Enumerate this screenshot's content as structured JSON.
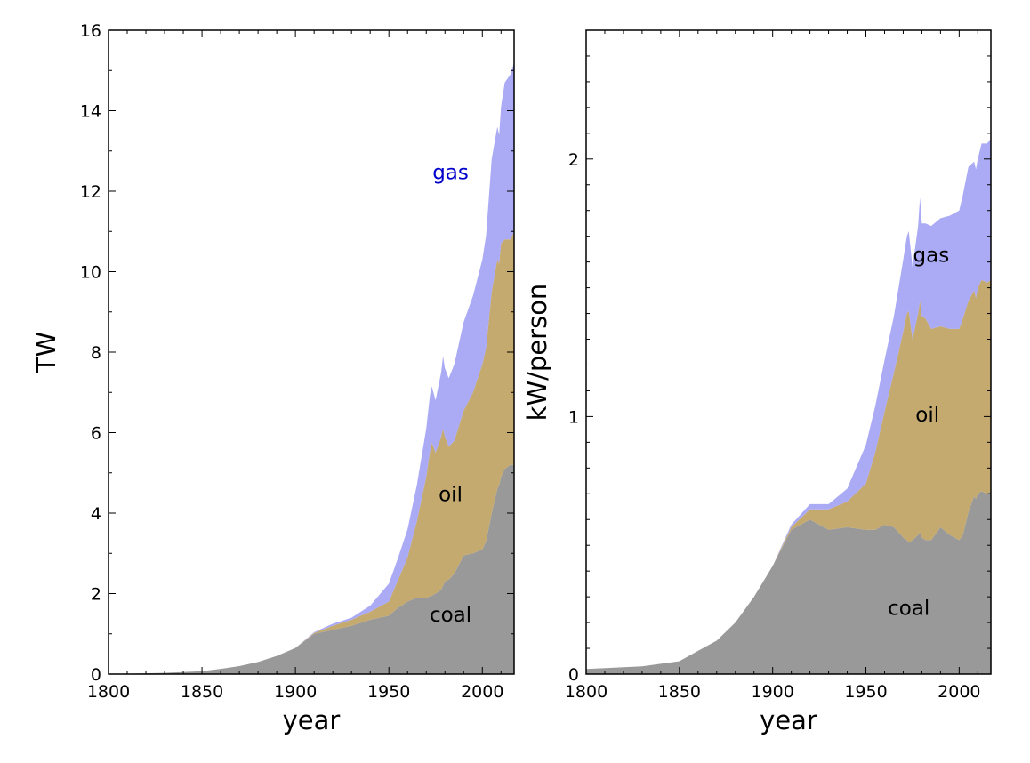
{
  "chart_data": [
    {
      "type": "area",
      "stacked": true,
      "xlabel": "year",
      "ylabel": "TW",
      "xlim": [
        1800,
        2017
      ],
      "ylim": [
        0,
        16
      ],
      "xticks": [
        1800,
        1850,
        1900,
        1950,
        2000
      ],
      "yticks": [
        0,
        2,
        4,
        6,
        8,
        10,
        12,
        14,
        16
      ],
      "x": [
        1800,
        1830,
        1850,
        1860,
        1870,
        1880,
        1890,
        1900,
        1910,
        1920,
        1930,
        1940,
        1950,
        1955,
        1960,
        1965,
        1970,
        1972,
        1973,
        1975,
        1978,
        1979,
        1980,
        1982,
        1985,
        1990,
        1995,
        2000,
        2002,
        2005,
        2008,
        2009,
        2010,
        2012,
        2015,
        2017
      ],
      "series": [
        {
          "name": "coal",
          "color": "#999999",
          "values": [
            0.0,
            0.03,
            0.07,
            0.13,
            0.2,
            0.3,
            0.45,
            0.65,
            1.0,
            1.1,
            1.2,
            1.35,
            1.45,
            1.65,
            1.8,
            1.9,
            1.9,
            1.93,
            1.95,
            2.0,
            2.1,
            2.2,
            2.3,
            2.35,
            2.5,
            2.95,
            3.0,
            3.1,
            3.3,
            4.0,
            4.6,
            4.7,
            4.9,
            5.1,
            5.2,
            5.2
          ]
        },
        {
          "name": "oil",
          "color": "#c5aa70",
          "values": [
            0.0,
            0.0,
            0.0,
            0.0,
            0.0,
            0.0,
            0.0,
            0.0,
            0.02,
            0.1,
            0.15,
            0.2,
            0.35,
            0.7,
            1.1,
            1.9,
            3.0,
            3.6,
            3.8,
            3.5,
            3.8,
            3.9,
            3.6,
            3.3,
            3.3,
            3.6,
            4.0,
            4.6,
            4.8,
            5.5,
            5.7,
            5.5,
            5.8,
            5.7,
            5.6,
            5.8
          ]
        },
        {
          "name": "gas",
          "color": "#aaaaf5",
          "values": [
            0.0,
            0.0,
            0.0,
            0.0,
            0.0,
            0.0,
            0.0,
            0.0,
            0.02,
            0.05,
            0.05,
            0.15,
            0.45,
            0.55,
            0.7,
            0.9,
            1.2,
            1.4,
            1.4,
            1.3,
            1.6,
            1.8,
            1.7,
            1.7,
            1.9,
            2.2,
            2.4,
            2.6,
            2.8,
            3.3,
            3.3,
            3.2,
            3.4,
            3.9,
            4.1,
            4.2
          ]
        }
      ],
      "labels": [
        {
          "text": "gas",
          "x": 1983,
          "y": 12.3,
          "color": "#0000cc"
        },
        {
          "text": "oil",
          "x": 1983,
          "y": 4.3,
          "color": "#000000"
        },
        {
          "text": "coal",
          "x": 1983,
          "y": 1.3,
          "color": "#000000"
        }
      ]
    },
    {
      "type": "area",
      "stacked": true,
      "xlabel": "year",
      "ylabel": "kW/person",
      "xlim": [
        1800,
        2017
      ],
      "ylim": [
        0,
        2.5
      ],
      "xticks": [
        1800,
        1850,
        1900,
        1950,
        2000
      ],
      "yticks": [
        0,
        1,
        2
      ],
      "x": [
        1800,
        1830,
        1850,
        1860,
        1870,
        1880,
        1890,
        1900,
        1910,
        1920,
        1930,
        1940,
        1950,
        1955,
        1960,
        1965,
        1970,
        1972,
        1973,
        1975,
        1978,
        1979,
        1980,
        1982,
        1985,
        1990,
        1995,
        2000,
        2002,
        2005,
        2008,
        2009,
        2010,
        2012,
        2015,
        2017
      ],
      "series": [
        {
          "name": "coal",
          "color": "#999999",
          "values": [
            0.02,
            0.03,
            0.05,
            0.09,
            0.13,
            0.2,
            0.3,
            0.42,
            0.56,
            0.6,
            0.56,
            0.57,
            0.56,
            0.56,
            0.58,
            0.57,
            0.53,
            0.52,
            0.51,
            0.52,
            0.54,
            0.55,
            0.53,
            0.52,
            0.52,
            0.57,
            0.54,
            0.52,
            0.54,
            0.63,
            0.69,
            0.68,
            0.7,
            0.71,
            0.7,
            0.71
          ]
        },
        {
          "name": "oil",
          "color": "#c5aa70",
          "values": [
            0.0,
            0.0,
            0.0,
            0.0,
            0.0,
            0.0,
            0.0,
            0.0,
            0.01,
            0.04,
            0.08,
            0.1,
            0.18,
            0.3,
            0.44,
            0.6,
            0.8,
            0.88,
            0.9,
            0.78,
            0.86,
            0.9,
            0.86,
            0.86,
            0.82,
            0.78,
            0.8,
            0.82,
            0.84,
            0.82,
            0.8,
            0.78,
            0.8,
            0.82,
            0.82,
            0.82
          ]
        },
        {
          "name": "gas",
          "color": "#aaaaf5",
          "values": [
            0.0,
            0.0,
            0.0,
            0.0,
            0.0,
            0.0,
            0.0,
            0.0,
            0.01,
            0.02,
            0.02,
            0.05,
            0.15,
            0.18,
            0.2,
            0.22,
            0.28,
            0.3,
            0.31,
            0.28,
            0.34,
            0.4,
            0.36,
            0.37,
            0.4,
            0.42,
            0.44,
            0.46,
            0.48,
            0.52,
            0.5,
            0.5,
            0.5,
            0.53,
            0.54,
            0.55
          ]
        }
      ],
      "labels": [
        {
          "text": "gas",
          "x": 1985,
          "y": 1.6,
          "color": "#000000"
        },
        {
          "text": "oil",
          "x": 1983,
          "y": 0.98,
          "color": "#000000"
        },
        {
          "text": "coal",
          "x": 1973,
          "y": 0.23,
          "color": "#000000"
        }
      ]
    }
  ]
}
